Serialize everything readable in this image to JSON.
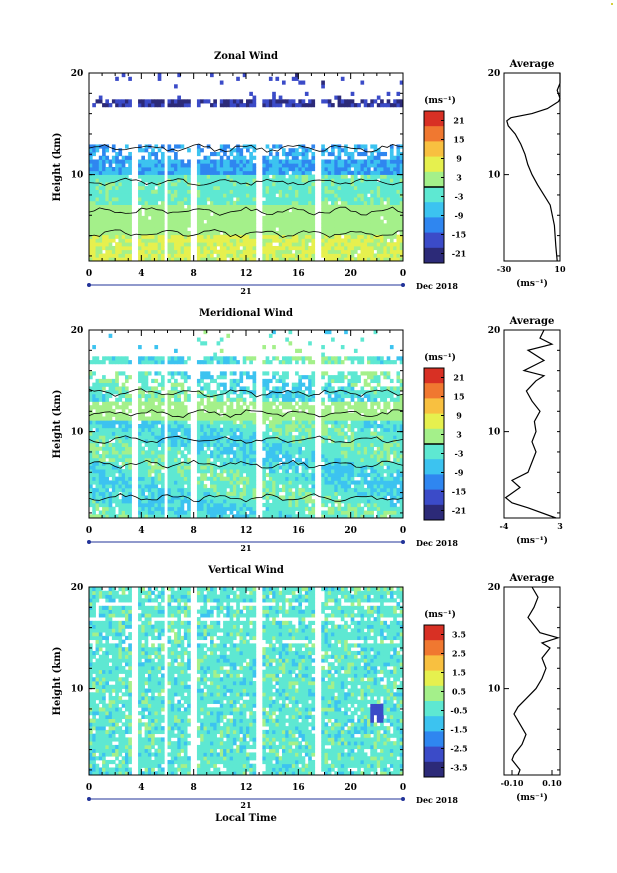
{
  "figure": {
    "xlabel": "Local Time",
    "date_label": "Dec 2018",
    "day_label": "21",
    "x_ticks": [
      "0",
      "4",
      "8",
      "12",
      "16",
      "20",
      "0"
    ],
    "ylabel": "Height (km)",
    "y_ticks": [
      "20",
      "10"
    ],
    "unit_label": "(ms⁻¹)",
    "avg_title": "Average",
    "avg_unit": "(ms⁻¹)"
  },
  "chart_data": [
    {
      "type": "heatmap",
      "title": "Zonal Wind",
      "ylabel": "Height (km)",
      "xlim": [
        0,
        24
      ],
      "ylim": [
        1.5,
        20
      ],
      "colorbar": {
        "ticks": [
          "21",
          "15",
          "9",
          "3",
          "-3",
          "-9",
          "-15",
          "-21"
        ],
        "range": [
          -24,
          24
        ],
        "zero_line": true
      },
      "average": {
        "title": "Average",
        "x_ticks": [
          "-30",
          "10"
        ],
        "xlim": [
          -30,
          10
        ],
        "ylim": [
          1.5,
          20
        ],
        "profile": [
          [
            1.5,
            8
          ],
          [
            3,
            7
          ],
          [
            5,
            6
          ],
          [
            7,
            3
          ],
          [
            9,
            -6
          ],
          [
            10,
            -10
          ],
          [
            11,
            -13
          ],
          [
            12,
            -15
          ],
          [
            13,
            -18
          ],
          [
            14,
            -22
          ],
          [
            14.8,
            -27
          ],
          [
            15.3,
            -28
          ],
          [
            15.6,
            -25
          ],
          [
            16,
            -10
          ],
          [
            16.5,
            1
          ],
          [
            17.2,
            9
          ],
          [
            17.5,
            11
          ],
          [
            18.3,
            8
          ],
          [
            19,
            10
          ],
          [
            20,
            10
          ]
        ]
      }
    },
    {
      "type": "heatmap",
      "title": "Meridional Wind",
      "ylabel": "Height (km)",
      "xlim": [
        0,
        24
      ],
      "ylim": [
        1.5,
        20
      ],
      "colorbar": {
        "ticks": [
          "21",
          "15",
          "9",
          "3",
          "-3",
          "-9",
          "-15",
          "-21"
        ],
        "range": [
          -24,
          24
        ],
        "zero_line": true
      },
      "average": {
        "title": "Average",
        "x_ticks": [
          "-4",
          "3"
        ],
        "xlim": [
          -4,
          3
        ],
        "ylim": [
          1.5,
          20
        ],
        "profile": [
          [
            1.5,
            2.5
          ],
          [
            2.5,
            -1
          ],
          [
            3,
            -3
          ],
          [
            3.5,
            -3.8
          ],
          [
            4.5,
            -2
          ],
          [
            5.2,
            -3
          ],
          [
            6,
            -1
          ],
          [
            7,
            -0.5
          ],
          [
            8,
            0
          ],
          [
            9,
            -0.5
          ],
          [
            10,
            0
          ],
          [
            11,
            -0.2
          ],
          [
            12,
            0.5
          ],
          [
            13,
            -0.5
          ],
          [
            14,
            -1.2
          ],
          [
            15,
            0
          ],
          [
            15.5,
            1
          ],
          [
            16,
            -1.5
          ],
          [
            17,
            1
          ],
          [
            18,
            -1
          ],
          [
            18.6,
            2
          ],
          [
            19.2,
            0.5
          ],
          [
            20,
            1
          ]
        ]
      }
    },
    {
      "type": "heatmap",
      "title": "Vertical Wind",
      "ylabel": "Height (km)",
      "xlabel": "Local Time",
      "xlim": [
        0,
        24
      ],
      "ylim": [
        1.5,
        20
      ],
      "colorbar": {
        "ticks": [
          "3.5",
          "2.5",
          "1.5",
          "0.5",
          "-0.5",
          "-1.5",
          "-2.5",
          "-3.5"
        ],
        "range": [
          -4,
          4
        ],
        "zero_line": false
      },
      "average": {
        "title": "Average",
        "x_ticks": [
          "-0.10",
          "0.10"
        ],
        "xlim": [
          -0.14,
          0.14
        ],
        "ylim": [
          1.5,
          20
        ],
        "profile": [
          [
            1.5,
            -0.07
          ],
          [
            2,
            -0.06
          ],
          [
            3,
            -0.1
          ],
          [
            3.5,
            -0.09
          ],
          [
            4.5,
            -0.05
          ],
          [
            5.5,
            -0.03
          ],
          [
            6.5,
            -0.06
          ],
          [
            7.5,
            -0.09
          ],
          [
            8.2,
            -0.07
          ],
          [
            9,
            -0.03
          ],
          [
            10,
            0.02
          ],
          [
            11,
            0.05
          ],
          [
            12,
            0.07
          ],
          [
            13,
            0.05
          ],
          [
            14,
            0.09
          ],
          [
            14.5,
            0.05
          ],
          [
            15,
            0.13
          ],
          [
            15.5,
            0.04
          ],
          [
            16,
            0.02
          ],
          [
            17,
            -0.02
          ],
          [
            18,
            0.01
          ],
          [
            19,
            0.03
          ],
          [
            20,
            0.0
          ]
        ]
      }
    }
  ],
  "colors": {
    "scale": [
      "#2c2a78",
      "#3b4bc8",
      "#2f86f0",
      "#3cc3f0",
      "#5ee8d2",
      "#a4f08a",
      "#e6f04e",
      "#f8c040",
      "#f07830",
      "#d83024"
    ],
    "axis": "#000000"
  }
}
